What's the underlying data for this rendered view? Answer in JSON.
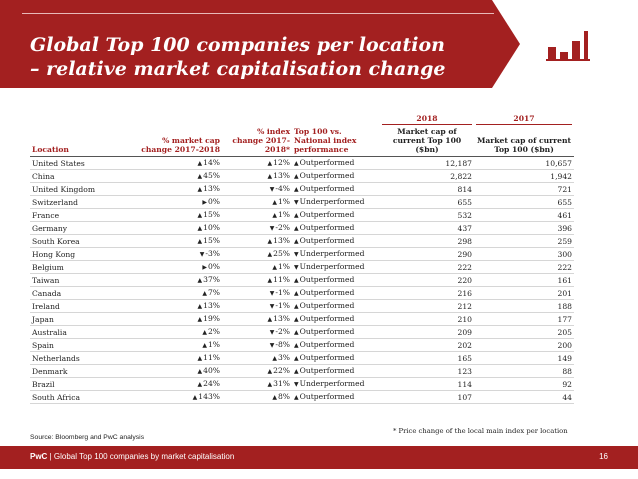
{
  "slide": {
    "title_line1": "Global Top 100 companies per location",
    "title_line2": "– relative market capitalisation change"
  },
  "table": {
    "year_2018": "2018",
    "year_2017": "2017",
    "headers": {
      "location": "Location",
      "mcap_change": "% market cap change 2017-2018",
      "index_change": "% index change 2017-2018*",
      "top100_vs_national": "Top 100 vs. National index performance",
      "mcap_2018": "Market cap of current Top 100 ($bn)",
      "mcap_2017": "Market cap of current Top 100 ($bn)"
    },
    "rows": [
      {
        "location": "United States",
        "mc_dir": "up",
        "mc": "14%",
        "ix_dir": "up",
        "ix": "12%",
        "pf_dir": "up",
        "pf": "Outperformed",
        "m18": "12,187",
        "m17": "10,657"
      },
      {
        "location": "China",
        "mc_dir": "up",
        "mc": "45%",
        "ix_dir": "up",
        "ix": "13%",
        "pf_dir": "up",
        "pf": "Outperformed",
        "m18": "2,822",
        "m17": "1,942"
      },
      {
        "location": "United Kingdom",
        "mc_dir": "up",
        "mc": "13%",
        "ix_dir": "down",
        "ix": "-4%",
        "pf_dir": "up",
        "pf": "Outperformed",
        "m18": "814",
        "m17": "721"
      },
      {
        "location": "Switzerland",
        "mc_dir": "flat",
        "mc": "0%",
        "ix_dir": "up",
        "ix": "1%",
        "pf_dir": "down",
        "pf": "Underperformed",
        "m18": "655",
        "m17": "655"
      },
      {
        "location": "France",
        "mc_dir": "up",
        "mc": "15%",
        "ix_dir": "up",
        "ix": "1%",
        "pf_dir": "up",
        "pf": "Outperformed",
        "m18": "532",
        "m17": "461"
      },
      {
        "location": "Germany",
        "mc_dir": "up",
        "mc": "10%",
        "ix_dir": "down",
        "ix": "-2%",
        "pf_dir": "up",
        "pf": "Outperformed",
        "m18": "437",
        "m17": "396"
      },
      {
        "location": "South Korea",
        "mc_dir": "up",
        "mc": "15%",
        "ix_dir": "up",
        "ix": "13%",
        "pf_dir": "up",
        "pf": "Outperformed",
        "m18": "298",
        "m17": "259"
      },
      {
        "location": "Hong Kong",
        "mc_dir": "down",
        "mc": "-3%",
        "ix_dir": "up",
        "ix": "25%",
        "pf_dir": "down",
        "pf": "Underperformed",
        "m18": "290",
        "m17": "300"
      },
      {
        "location": "Belgium",
        "mc_dir": "flat",
        "mc": "0%",
        "ix_dir": "up",
        "ix": "1%",
        "pf_dir": "down",
        "pf": "Underperformed",
        "m18": "222",
        "m17": "222"
      },
      {
        "location": "Taiwan",
        "mc_dir": "up",
        "mc": "37%",
        "ix_dir": "up",
        "ix": "11%",
        "pf_dir": "up",
        "pf": "Outperformed",
        "m18": "220",
        "m17": "161"
      },
      {
        "location": "Canada",
        "mc_dir": "up",
        "mc": "7%",
        "ix_dir": "down",
        "ix": "-1%",
        "pf_dir": "up",
        "pf": "Outperformed",
        "m18": "216",
        "m17": "201"
      },
      {
        "location": "Ireland",
        "mc_dir": "up",
        "mc": "13%",
        "ix_dir": "down",
        "ix": "-1%",
        "pf_dir": "up",
        "pf": "Outperformed",
        "m18": "212",
        "m17": "188"
      },
      {
        "location": "Japan",
        "mc_dir": "up",
        "mc": "19%",
        "ix_dir": "up",
        "ix": "13%",
        "pf_dir": "up",
        "pf": "Outperformed",
        "m18": "210",
        "m17": "177"
      },
      {
        "location": "Australia",
        "mc_dir": "up",
        "mc": "2%",
        "ix_dir": "down",
        "ix": "-2%",
        "pf_dir": "up",
        "pf": "Outperformed",
        "m18": "209",
        "m17": "205"
      },
      {
        "location": "Spain",
        "mc_dir": "up",
        "mc": "1%",
        "ix_dir": "down",
        "ix": "-8%",
        "pf_dir": "up",
        "pf": "Outperformed",
        "m18": "202",
        "m17": "200"
      },
      {
        "location": "Netherlands",
        "mc_dir": "up",
        "mc": "11%",
        "ix_dir": "up",
        "ix": "3%",
        "pf_dir": "up",
        "pf": "Outperformed",
        "m18": "165",
        "m17": "149"
      },
      {
        "location": "Denmark",
        "mc_dir": "up",
        "mc": "40%",
        "ix_dir": "up",
        "ix": "22%",
        "pf_dir": "up",
        "pf": "Outperformed",
        "m18": "123",
        "m17": "88"
      },
      {
        "location": "Brazil",
        "mc_dir": "up",
        "mc": "24%",
        "ix_dir": "up",
        "ix": "31%",
        "pf_dir": "down",
        "pf": "Underperformed",
        "m18": "114",
        "m17": "92"
      },
      {
        "location": "South Africa",
        "mc_dir": "up",
        "mc": "143%",
        "ix_dir": "up",
        "ix": "8%",
        "pf_dir": "up",
        "pf": "Outperformed",
        "m18": "107",
        "m17": "44"
      }
    ]
  },
  "footnote": "* Price change of the local main index per location",
  "source": "Source: Bloomberg and PwC analysis",
  "footer": {
    "brand": "PwC",
    "separator": " | ",
    "text": "Global Top 100 companies by market capitalisation",
    "page": "16"
  },
  "icons": {
    "up": "triangle-up-icon",
    "down": "triangle-down-icon",
    "flat": "triangle-right-icon",
    "chart": "bar-chart-icon"
  },
  "colors": {
    "brand_red": "#a32020"
  }
}
